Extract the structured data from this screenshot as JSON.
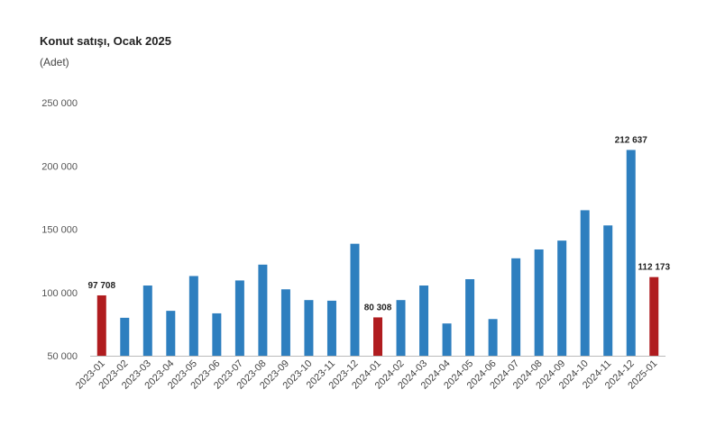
{
  "chart_data": {
    "type": "bar",
    "title": "Konut satışı, Ocak 2025",
    "subtitle": "(Adet)",
    "xlabel": "",
    "ylabel": "",
    "ylim": [
      50000,
      250000
    ],
    "yticks": [
      "50 000",
      "100 000",
      "150 000",
      "200 000",
      "250 000"
    ],
    "ytick_values": [
      50000,
      100000,
      150000,
      200000,
      250000
    ],
    "grid": false,
    "legend": "none",
    "categories": [
      "2023-01",
      "2023-02",
      "2023-03",
      "2023-04",
      "2023-05",
      "2023-06",
      "2023-07",
      "2023-08",
      "2023-09",
      "2023-10",
      "2023-11",
      "2023-12",
      "2024-01",
      "2024-02",
      "2024-03",
      "2024-04",
      "2024-05",
      "2024-06",
      "2024-07",
      "2024-08",
      "2024-09",
      "2024-10",
      "2024-11",
      "2024-12",
      "2025-01"
    ],
    "values": [
      97708,
      80000,
      105500,
      85500,
      113000,
      83500,
      109500,
      122000,
      102500,
      94000,
      93500,
      138500,
      80308,
      94000,
      105500,
      75500,
      110500,
      79000,
      127000,
      134000,
      141000,
      165000,
      153000,
      212637,
      112173
    ],
    "highlight": [
      0,
      12,
      24
    ],
    "data_labels": {
      "0": "97 708",
      "12": "80 308",
      "23": "212 637",
      "24": "112 173"
    },
    "colors": {
      "bar": "#2e7fbf",
      "highlight": "#b01c1f",
      "axis": "#bbbbbb"
    }
  }
}
